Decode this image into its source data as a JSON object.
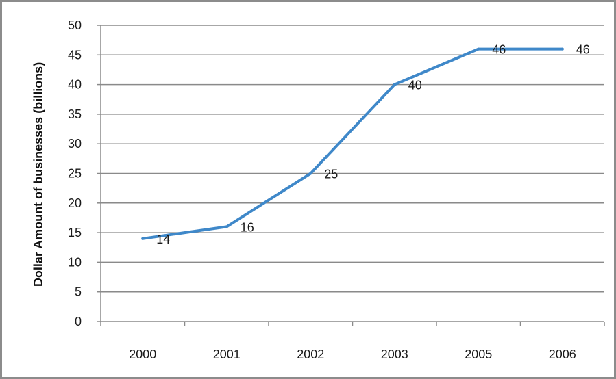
{
  "chart_data": {
    "type": "line",
    "title": "",
    "xlabel": "",
    "ylabel": "Dollar Amount of businesses (billions)",
    "categories": [
      "2000",
      "2001",
      "2002",
      "2003",
      "2005",
      "2006"
    ],
    "series": [
      {
        "values": [
          14,
          16,
          25,
          40,
          46,
          46
        ]
      }
    ],
    "data_labels": [
      "14",
      "16",
      "25",
      "40",
      "46",
      "46"
    ],
    "ylim": [
      0,
      50
    ],
    "yticks": [
      "0",
      "5",
      "10",
      "15",
      "20",
      "25",
      "30",
      "35",
      "40",
      "45",
      "50"
    ],
    "grid": true,
    "legend": "none",
    "line_color": "#3f88c9",
    "grid_color": "#8a8a8a"
  }
}
